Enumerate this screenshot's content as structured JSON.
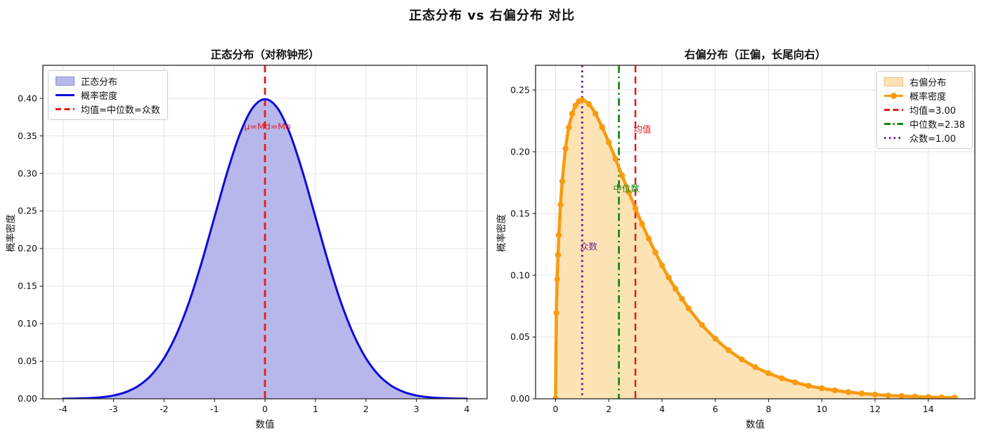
{
  "figure": {
    "title": "正态分布 vs 右偏分布 对比",
    "background": "#ffffff"
  },
  "chart_data": [
    {
      "id": "normal-distribution",
      "type": "area",
      "title": "正态分布（对称钟形）",
      "xlabel": "数值",
      "ylabel": "概率密度",
      "xlim": [
        -4.4,
        4.4
      ],
      "ylim": [
        0,
        0.444
      ],
      "grid": true,
      "xticks": [
        -4,
        -3,
        -2,
        -1,
        0,
        1,
        2,
        3,
        4
      ],
      "xtick_labels": [
        "-4",
        "-3",
        "-2",
        "-1",
        "0",
        "1",
        "2",
        "3",
        "4"
      ],
      "yticks": [
        0.0,
        0.05,
        0.1,
        0.15,
        0.2,
        0.25,
        0.3,
        0.35,
        0.4
      ],
      "ytick_labels": [
        "0.00",
        "0.05",
        "0.10",
        "0.15",
        "0.20",
        "0.25",
        "0.30",
        "0.35",
        "0.40"
      ],
      "series": [
        {
          "name": "概率密度",
          "curve_name": "density-curve",
          "color": "#0b0bdc",
          "fill_color": "#b7b7ec",
          "fill_name": "正态分布",
          "line_width": 3,
          "marker": false,
          "x": [
            -4,
            -3.75,
            -3.5,
            -3.25,
            -3,
            -2.75,
            -2.5,
            -2.25,
            -2,
            -1.75,
            -1.5,
            -1.25,
            -1,
            -0.75,
            -0.5,
            -0.25,
            0,
            0.25,
            0.5,
            0.75,
            1,
            1.25,
            1.5,
            1.75,
            2,
            2.25,
            2.5,
            2.75,
            3,
            3.25,
            3.5,
            3.75,
            4
          ],
          "y": [
            0.0001,
            0.0004,
            0.0009,
            0.002,
            0.0044,
            0.0091,
            0.0175,
            0.0317,
            0.054,
            0.0863,
            0.1295,
            0.1826,
            0.242,
            0.3011,
            0.3521,
            0.3867,
            0.3989,
            0.3867,
            0.3521,
            0.3011,
            0.242,
            0.1826,
            0.1295,
            0.0863,
            0.054,
            0.0317,
            0.0175,
            0.0091,
            0.0044,
            0.002,
            0.0009,
            0.0004,
            0.0001
          ]
        }
      ],
      "vlines": [
        {
          "name": "mean-median-mode-line",
          "x": 0,
          "style": "dashed",
          "color": "#e31b1b",
          "width": 2.8,
          "label": "均值=中位数=众数"
        }
      ],
      "annotations": [
        {
          "name": "mu-md-mo-annotation",
          "text": "μ=Md=Mo",
          "x": 0.05,
          "y": 0.362,
          "color": "#e31b1b"
        }
      ],
      "legend": {
        "position": "upper-left",
        "items": [
          {
            "label": "正态分布",
            "swatch": "patch",
            "color": "#b7b7ec",
            "edge": "#8d8dd0"
          },
          {
            "label": "概率密度",
            "swatch": "line",
            "color": "#0b0bdc"
          },
          {
            "label": "均值=中位数=众数",
            "swatch": "dashed",
            "color": "#e31b1b"
          }
        ]
      }
    },
    {
      "id": "right-skewed-distribution",
      "type": "area",
      "title": "右偏分布（正偏，长尾向右）",
      "xlabel": "数值",
      "ylabel": "概率密度",
      "xlim": [
        -0.75,
        15.75
      ],
      "ylim": [
        0,
        0.27
      ],
      "grid": true,
      "xticks": [
        0,
        2,
        4,
        6,
        8,
        10,
        12,
        14
      ],
      "xtick_labels": [
        "0",
        "2",
        "4",
        "6",
        "8",
        "10",
        "12",
        "14"
      ],
      "yticks": [
        0.0,
        0.05,
        0.1,
        0.15,
        0.2,
        0.25
      ],
      "ytick_labels": [
        "0.00",
        "0.05",
        "0.10",
        "0.15",
        "0.20",
        "0.25"
      ],
      "stats": {
        "mean": "3.00",
        "median": "2.38",
        "mode": "1.00"
      },
      "series": [
        {
          "name": "概率密度",
          "curve_name": "density-curve",
          "color": "#f89b10",
          "fill_color": "#fce3b4",
          "fill_name": "右偏分布",
          "line_width": 4.5,
          "marker": true,
          "marker_radius": 4.2,
          "x": [
            0,
            0.03125,
            0.0625,
            0.09375,
            0.125,
            0.1875,
            0.25,
            0.375,
            0.5,
            0.625,
            0.75,
            0.875,
            1,
            1.25,
            1.5,
            1.75,
            2,
            2.25,
            2.5,
            2.75,
            3,
            3.25,
            3.5,
            3.75,
            4,
            4.25,
            4.5,
            4.75,
            5,
            5.5,
            6,
            6.5,
            7,
            7.5,
            8,
            8.5,
            9,
            9.5,
            10,
            10.5,
            11,
            11.5,
            12,
            12.5,
            13,
            13.5,
            14,
            14.5,
            15
          ],
          "y": [
            0,
            0.0694,
            0.0967,
            0.1166,
            0.1325,
            0.1573,
            0.176,
            0.2025,
            0.2197,
            0.2307,
            0.2374,
            0.2409,
            0.242,
            0.2387,
            0.2308,
            0.22,
            0.2076,
            0.1943,
            0.1807,
            0.1673,
            0.1542,
            0.1416,
            0.1297,
            0.1185,
            0.108,
            0.0982,
            0.0892,
            0.0809,
            0.0732,
            0.0598,
            0.0487,
            0.0394,
            0.0319,
            0.0257,
            0.0207,
            0.0166,
            0.0133,
            0.0106,
            0.0085,
            0.0068,
            0.0054,
            0.0043,
            0.0034,
            0.0027,
            0.0022,
            0.0017,
            0.0014,
            0.0011,
            0.0009
          ]
        }
      ],
      "vlines": [
        {
          "name": "mean-line",
          "x": 3,
          "style": "dashed",
          "color": "#e31b1b",
          "width": 2.5,
          "label": "均值=3.00"
        },
        {
          "name": "median-line",
          "x": 2.38,
          "style": "dashdot",
          "color": "#0f880f",
          "width": 2.7,
          "label": "中位数=2.38"
        },
        {
          "name": "mode-line",
          "x": 1,
          "style": "dotted",
          "color": "#6e2090",
          "width": 2.9,
          "label": "众数=1.00"
        }
      ],
      "annotations": [
        {
          "name": "mean-annotation",
          "text": "均值",
          "x": 3.26,
          "y": 0.218,
          "color": "#e31b1b"
        },
        {
          "name": "median-annotation",
          "text": "中位数",
          "x": 2.66,
          "y": 0.17,
          "color": "#0f880f"
        },
        {
          "name": "mode-annotation",
          "text": "众数",
          "x": 1.24,
          "y": 0.123,
          "color": "#6e2090"
        }
      ],
      "legend": {
        "position": "upper-right",
        "items": [
          {
            "label": "右偏分布",
            "swatch": "patch",
            "color": "#fce3b4",
            "edge": "#edc27a"
          },
          {
            "label": "概率密度",
            "swatch": "line-marker",
            "color": "#f89b10"
          },
          {
            "label": "均值=3.00",
            "swatch": "dashed",
            "color": "#e31b1b"
          },
          {
            "label": "中位数=2.38",
            "swatch": "dashdot",
            "color": "#0f880f"
          },
          {
            "label": "众数=1.00",
            "swatch": "dotted",
            "color": "#6e2090"
          }
        ]
      }
    }
  ],
  "style": {
    "grid_color": "#e4e4e4",
    "frame_color": "#262626",
    "text_color": "#111111"
  }
}
